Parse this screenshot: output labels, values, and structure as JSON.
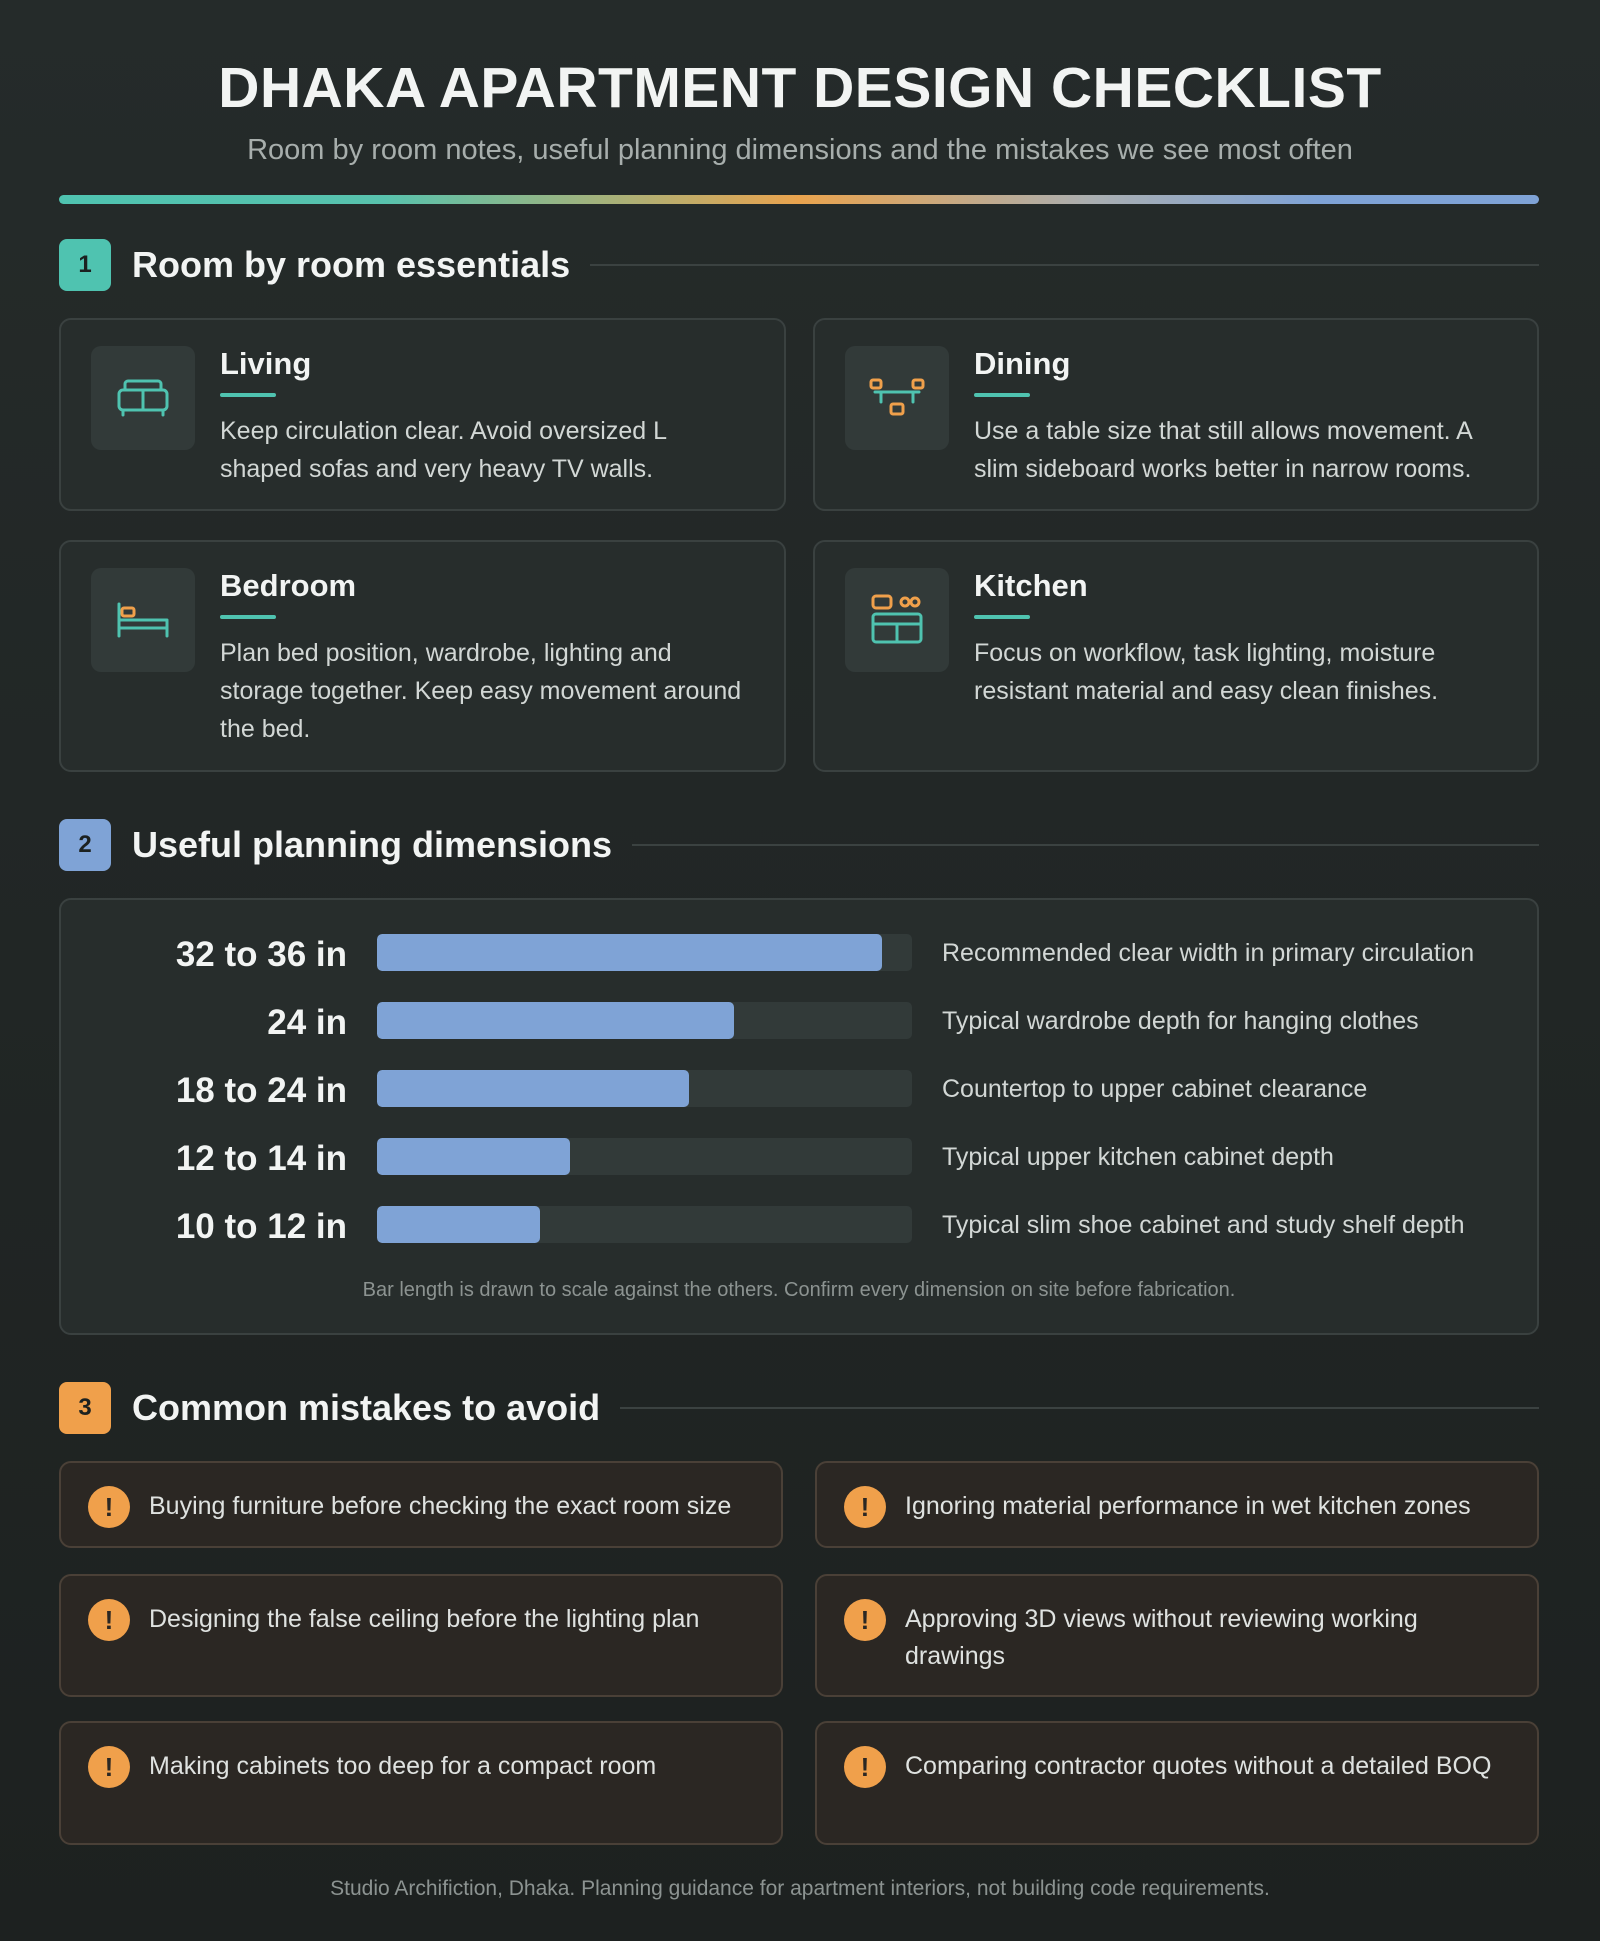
{
  "header": {
    "title": "DHAKA APARTMENT DESIGN CHECKLIST",
    "subtitle": "Room by room notes, useful planning dimensions and the mistakes we see most often"
  },
  "sections": [
    {
      "number": "1",
      "title": "Room by room essentials"
    },
    {
      "number": "2",
      "title": "Useful planning dimensions"
    },
    {
      "number": "3",
      "title": "Common mistakes to avoid"
    }
  ],
  "rooms": [
    {
      "name": "Living",
      "text": "Keep circulation clear. Avoid oversized L shaped sofas and very heavy TV walls."
    },
    {
      "name": "Dining",
      "text": "Use a table size that still allows movement. A slim sideboard works better in narrow rooms."
    },
    {
      "name": "Bedroom",
      "text": "Plan bed position, wardrobe, lighting and storage together. Keep easy movement around the bed."
    },
    {
      "name": "Kitchen",
      "text": "Focus on workflow, task lighting, moisture resistant material and easy clean finishes."
    }
  ],
  "chart_data": {
    "type": "bar",
    "orientation": "horizontal",
    "categories": [
      "32 to 36 in",
      "24 in",
      "18 to 24 in",
      "12 to 14 in",
      "10 to 12 in"
    ],
    "descriptions": [
      "Recommended clear width in primary circulation",
      "Typical wardrobe depth for hanging clothes",
      "Countertop to upper cabinet clearance",
      "Typical upper kitchen cabinet depth",
      "Typical slim shoe cabinet and study shelf depth"
    ],
    "values": [
      34,
      24,
      21,
      13,
      11
    ],
    "xlim": [
      0,
      36
    ],
    "color": "#7fa3d6",
    "note": "Bar length is drawn to scale against the others. Confirm every dimension on site before fabrication."
  },
  "mistakes": [
    "Buying furniture before checking the exact room size",
    "Ignoring material performance in wet kitchen zones",
    "Designing the false ceiling before the lighting plan",
    "Approving 3D views without reviewing working drawings",
    "Making cabinets too deep for a compact room",
    "Comparing contractor quotes without a detailed BOQ"
  ],
  "footer": "Studio Archifiction, Dhaka. Planning guidance for apartment interiors, not building code requirements."
}
